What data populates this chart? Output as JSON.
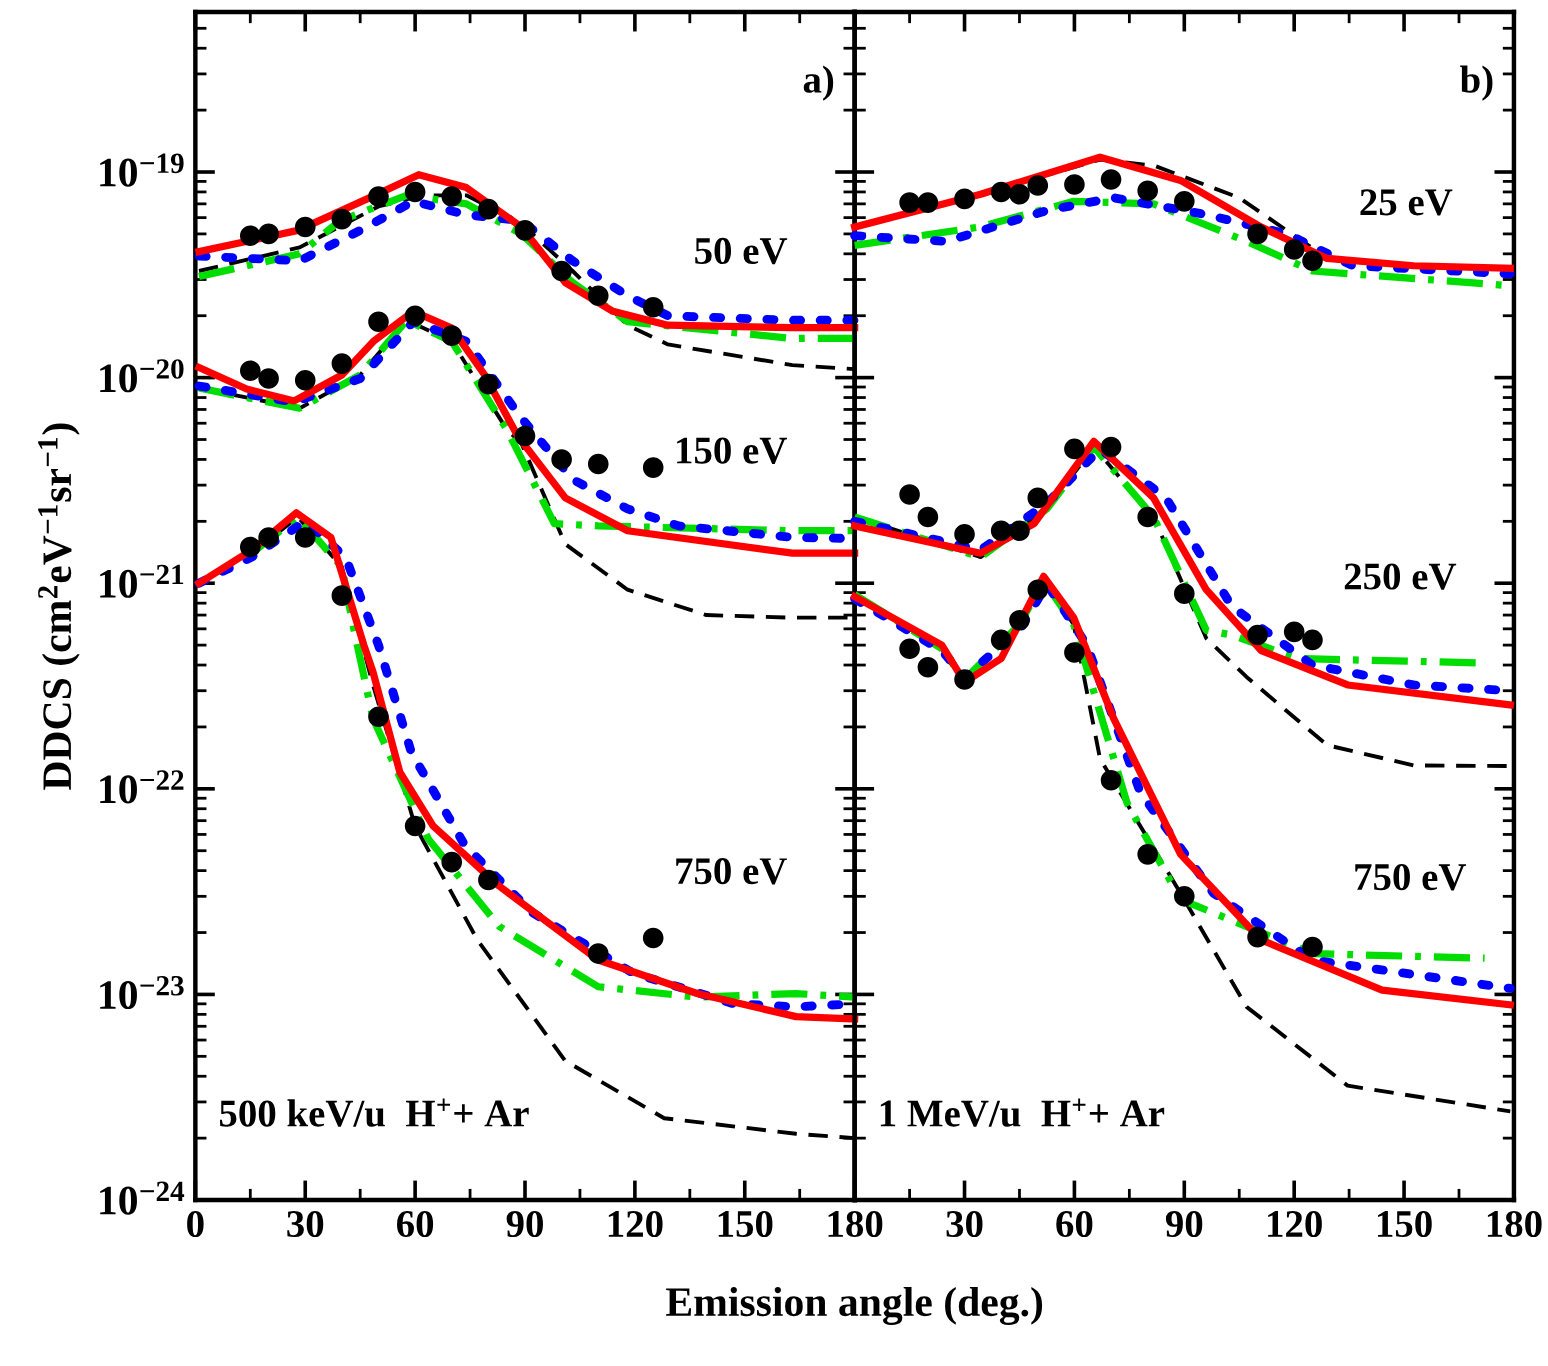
{
  "chart_data": [
    {
      "type": "line",
      "xlabel": "Emission angle (deg.)",
      "ylabel": "DDCS (cm$^{2}$eV$^{−1}$sr$^{−1}$)",
      "log": "y",
      "grid": false,
      "xlim": [
        0,
        180
      ],
      "xticks": [
        0,
        30,
        60,
        90,
        120,
        150,
        180
      ],
      "ylim": [
        1e-24,
        6e-19
      ],
      "yticks": [
        {
          "value": 1e-24,
          "label": "10$^{−24}$"
        },
        {
          "value": 1e-23,
          "label": "10$^{−23}$"
        },
        {
          "value": 1e-22,
          "label": "10$^{−22}$"
        },
        {
          "value": 1e-21,
          "label": "10$^{−21}$"
        },
        {
          "value": 1e-20,
          "label": "10$^{−20}$"
        },
        {
          "value": 1e-19,
          "label": "10$^{−19}$"
        }
      ],
      "annotations": [
        "a)",
        "500 keV/u  H$^{+}$+ Ar",
        "50 eV",
        "150 eV",
        "750 eV"
      ],
      "series": [
        {
          "color": "#000000",
          "line_style": "dashed",
          "x": [
            1,
            28.5,
            50,
            62,
            74,
            89,
            103,
            118,
            129,
            163,
            180
          ],
          "values": [
            3.3e-20,
            4.3e-20,
            6.8e-20,
            7.7e-20,
            7.7e-20,
            5.6e-20,
            3.3e-20,
            1.8e-20,
            1.45e-20,
            1.15e-20,
            1.1e-20
          ]
        },
        {
          "color": "#00dd00",
          "line_style": "dashdot",
          "x": [
            1,
            28.5,
            39.5,
            57.7,
            74,
            89,
            103,
            118,
            163,
            180
          ],
          "values": [
            3.1e-20,
            4e-20,
            5.8e-20,
            7.7e-20,
            7e-20,
            5e-20,
            2.9e-20,
            1.87e-20,
            1.55e-20,
            1.55e-20
          ]
        },
        {
          "color": "#0000ff",
          "line_style": "dotted",
          "x": [
            1,
            28.5,
            45,
            59.5,
            74,
            89,
            103,
            118,
            129,
            163,
            180
          ],
          "values": [
            3.9e-20,
            3.7e-20,
            5.2e-20,
            7.2e-20,
            6.2e-20,
            5.8e-20,
            3.7e-20,
            2.5e-20,
            2e-20,
            1.9e-20,
            1.9e-20
          ]
        },
        {
          "color": "#ff0000",
          "line_style": "solid",
          "x": [
            1,
            28,
            49,
            61,
            74,
            89,
            101,
            114,
            129,
            163,
            180
          ],
          "values": [
            4.1e-20,
            5.2e-20,
            7.7e-20,
            9.7e-20,
            8.4e-20,
            5.4e-20,
            2.9e-20,
            2.1e-20,
            1.8e-20,
            1.75e-20,
            1.75e-20
          ]
        },
        {
          "type": "scatter",
          "color": "#000000",
          "marker": "circle",
          "x": [
            15,
            20,
            30,
            40,
            50,
            60,
            70,
            80,
            90,
            100,
            110,
            125
          ],
          "values": [
            4.9e-20,
            5e-20,
            5.4e-20,
            5.9e-20,
            7.6e-20,
            8e-20,
            7.6e-20,
            6.6e-20,
            5.2e-20,
            3.3e-20,
            2.5e-20,
            2.2e-20
          ]
        },
        {
          "color": "#000000",
          "line_style": "dashed",
          "x": [
            1,
            28.5,
            45,
            57.7,
            70,
            85,
            89,
            101,
            118,
            139.5,
            163,
            180
          ],
          "values": [
            8.9e-21,
            7.1e-21,
            1.03e-20,
            1.9e-20,
            1.5e-20,
            5.6e-21,
            4.8e-21,
            1.55e-21,
            9.3e-22,
            7e-22,
            6.8e-22,
            6.8e-22
          ]
        },
        {
          "color": "#00dd00",
          "line_style": "dashdot",
          "x": [
            1,
            28.5,
            45,
            57.7,
            70,
            85,
            98,
            110,
            163,
            180
          ],
          "values": [
            8.9e-21,
            7.1e-21,
            1.03e-20,
            1.9e-20,
            1.5e-20,
            5.6e-21,
            1.95e-21,
            1.9e-21,
            1.8e-21,
            1.8e-21
          ]
        },
        {
          "color": "#0000ff",
          "line_style": "dotted",
          "x": [
            1,
            27,
            45,
            59.5,
            74,
            88.6,
            103,
            118,
            132,
            163,
            180
          ],
          "values": [
            9.1e-21,
            7.6e-21,
            9.9e-21,
            1.87e-20,
            1.5e-20,
            6.5e-21,
            3.2e-21,
            2.3e-21,
            1.9e-21,
            1.67e-21,
            1.65e-21
          ]
        },
        {
          "color": "#ff0000",
          "line_style": "solid",
          "x": [
            1,
            14,
            27,
            40,
            48.6,
            59.5,
            70,
            79,
            88,
            101,
            118,
            163,
            180
          ],
          "values": [
            1.12e-20,
            8.8e-21,
            7.7e-21,
            1.03e-20,
            1.5e-20,
            2.1e-20,
            1.74e-20,
            1.03e-20,
            5.2e-21,
            2.6e-21,
            1.8e-21,
            1.4e-21,
            1.4e-21
          ]
        },
        {
          "type": "scatter",
          "color": "#000000",
          "marker": "circle",
          "x": [
            15,
            20,
            30,
            40,
            50,
            60,
            70,
            80,
            90,
            100,
            110,
            125
          ],
          "values": [
            1.08e-20,
            9.9e-21,
            9.7e-21,
            1.17e-20,
            1.87e-20,
            2e-20,
            1.6e-20,
            9.3e-21,
            5.2e-21,
            4e-21,
            3.8e-21,
            3.65e-21
          ]
        },
        {
          "color": "#000000",
          "line_style": "dashed",
          "x": [
            15.4,
            28,
            40,
            48.5,
            60,
            77,
            101,
            128,
            164,
            180
          ],
          "values": [
            1.4e-21,
            2.1e-21,
            1.2e-21,
            3.2e-22,
            6.6e-23,
            1.84e-23,
            4.75e-24,
            2.5e-24,
            2.1e-24,
            2e-24
          ]
        },
        {
          "color": "#00dd00",
          "line_style": "dashdot",
          "x": [
            15.4,
            28,
            40,
            43,
            48.5,
            63.6,
            83,
            110,
            137,
            164,
            180
          ],
          "values": [
            1.4e-21,
            2.1e-21,
            1.2e-21,
            6.3e-22,
            2.2e-22,
            5.7e-23,
            2.14e-23,
            1.09e-23,
            9.7e-24,
            1.01e-23,
            9.7e-24
          ]
        },
        {
          "color": "#0000ff",
          "line_style": "dotted",
          "x": [
            1,
            15.4,
            30,
            41,
            50,
            59,
            73.6,
            92,
            119.5,
            147,
            164,
            180
          ],
          "values": [
            1e-21,
            1.34e-21,
            2e-21,
            1.34e-21,
            5e-22,
            1.5e-22,
            5.3e-23,
            2.5e-23,
            1.27e-23,
            9e-24,
            8.7e-24,
            9e-24
          ]
        },
        {
          "color": "#ff0000",
          "line_style": "solid",
          "x": [
            1,
            15.4,
            27.6,
            37,
            46,
            48.5,
            55.8,
            64.9,
            83,
            110,
            137,
            164,
            180
          ],
          "values": [
            1e-21,
            1.45e-21,
            2.2e-21,
            1.67e-21,
            5e-22,
            3.7e-22,
            1.21e-22,
            6.6e-23,
            3.36e-23,
            1.47e-23,
            1.01e-23,
            7.8e-24,
            7.6e-24
          ]
        },
        {
          "type": "scatter",
          "color": "#000000",
          "marker": "circle",
          "x": [
            15,
            20,
            30,
            40,
            50,
            60,
            70,
            80,
            110,
            125
          ],
          "values": [
            1.5e-21,
            1.67e-21,
            1.67e-21,
            8.7e-22,
            2.24e-22,
            6.6e-23,
            4.4e-23,
            3.6e-23,
            1.58e-23,
            1.88e-23
          ]
        }
      ]
    },
    {
      "type": "line",
      "log": "y",
      "grid": false,
      "tick_labels": "x",
      "xlim": [
        0,
        180
      ],
      "xticks": [
        30,
        60,
        90,
        120,
        150,
        180
      ],
      "ylim": [
        1e-24,
        6e-19
      ],
      "yticks": [
        {
          "value": 1e-24,
          "label": null
        },
        {
          "value": 1e-23,
          "label": null
        },
        {
          "value": 1e-22,
          "label": null
        },
        {
          "value": 1e-21,
          "label": null
        },
        {
          "value": 1e-20,
          "label": null
        },
        {
          "value": 1e-19,
          "label": null
        }
      ],
      "annotations": [
        "b)",
        "1 MeV/u  H$^{+}$+ Ar",
        "25 eV",
        "250 eV",
        "750 eV"
      ],
      "series": [
        {
          "color": "#000000",
          "line_style": "dashed",
          "x": [
            0,
            34.4,
            67,
            82,
            105,
            129,
            152.6,
            179
          ],
          "values": [
            5.4e-20,
            7.8e-20,
            1.15e-19,
            1.07e-19,
            7.5e-20,
            3.8e-20,
            3.5e-20,
            3.4e-20
          ]
        },
        {
          "color": "#00dd00",
          "line_style": "dashdot",
          "x": [
            0,
            34,
            59.8,
            81.6,
            107,
            125,
            179
          ],
          "values": [
            4.4e-20,
            5.4e-20,
            7.2e-20,
            7e-20,
            4.6e-20,
            3.3e-20,
            2.8e-20
          ]
        },
        {
          "color": "#0000ff",
          "line_style": "dotted",
          "x": [
            0,
            25,
            52.5,
            70.7,
            96,
            118,
            136,
            179
          ],
          "values": [
            4.9e-20,
            4.6e-20,
            6.5e-20,
            7.5e-20,
            6.2e-20,
            5e-20,
            3.5e-20,
            3.2e-20
          ]
        },
        {
          "color": "#ff0000",
          "line_style": "solid",
          "x": [
            0,
            34.4,
            67,
            89,
            111,
            129,
            152.6,
            179
          ],
          "values": [
            5.4e-20,
            7.8e-20,
            1.18e-19,
            9.1e-20,
            5.4e-20,
            3.8e-20,
            3.5e-20,
            3.4e-20
          ]
        },
        {
          "type": "scatter",
          "color": "#000000",
          "marker": "circle",
          "x": [
            15,
            20,
            30,
            40,
            45,
            50,
            60,
            70,
            80,
            90,
            110,
            120,
            125
          ],
          "values": [
            7.1e-20,
            7.1e-20,
            7.4e-20,
            8e-20,
            7.8e-20,
            8.6e-20,
            8.7e-20,
            9.2e-20,
            8.1e-20,
            7.2e-20,
            5e-20,
            4.2e-20,
            3.7e-20
          ]
        },
        {
          "color": "#000000",
          "line_style": "dashed",
          "x": [
            0,
            34.4,
            52.5,
            65.3,
            81.6,
            96,
            107,
            129,
            152.6,
            179
          ],
          "values": [
            2.1e-21,
            1.34e-21,
            2.3e-21,
            4.6e-21,
            2.1e-21,
            5.4e-22,
            3.5e-22,
            1.63e-22,
            1.3e-22,
            1.29e-22
          ]
        },
        {
          "color": "#00dd00",
          "line_style": "dashdot",
          "x": [
            0,
            34.4,
            52.5,
            65.3,
            81.6,
            96,
            103,
            121,
            170
          ],
          "values": [
            2.1e-21,
            1.34e-21,
            2.3e-21,
            4.6e-21,
            2.1e-21,
            5.9e-22,
            5.6e-22,
            4.3e-22,
            4.1e-22
          ]
        },
        {
          "color": "#0000ff",
          "line_style": "dotted",
          "x": [
            0,
            34.4,
            52.5,
            67,
            85,
            103,
            125,
            152.6,
            179
          ],
          "values": [
            2e-21,
            1.45e-21,
            2.45e-21,
            4.5e-21,
            2.6e-21,
            7.7e-22,
            4e-22,
            3.2e-22,
            3e-22
          ]
        },
        {
          "color": "#ff0000",
          "line_style": "solid",
          "x": [
            0,
            34.4,
            49,
            65.3,
            81.6,
            96,
            111,
            134.6,
            179
          ],
          "values": [
            1.9e-21,
            1.4e-21,
            1.95e-21,
            4.9e-21,
            2.6e-21,
            9.3e-22,
            4.7e-22,
            3.2e-22,
            2.56e-22
          ]
        },
        {
          "type": "scatter",
          "color": "#000000",
          "marker": "circle",
          "x": [
            15,
            20,
            30,
            40,
            45,
            50,
            60,
            70,
            80,
            90,
            110,
            120,
            125
          ],
          "values": [
            2.7e-21,
            2.1e-21,
            1.73e-21,
            1.8e-21,
            1.8e-21,
            2.6e-21,
            4.5e-21,
            4.6e-21,
            2.1e-21,
            8.9e-22,
            5.6e-22,
            5.8e-22,
            5.3e-22
          ]
        },
        {
          "color": "#000000",
          "line_style": "dashed",
          "x": [
            0,
            23.8,
            30,
            45,
            51.6,
            59.8,
            67,
            89,
            107,
            134.6,
            179
          ],
          "values": [
            8.8e-22,
            4.8e-22,
            3.4e-22,
            6.3e-22,
            1.03e-21,
            6.3e-22,
            1.4e-22,
            3.1e-23,
            8.7e-24,
            3.6e-24,
            2.7e-24
          ]
        },
        {
          "color": "#00dd00",
          "line_style": "dashdot",
          "x": [
            0,
            23.8,
            30,
            45,
            51.6,
            59.8,
            74.4,
            89,
            125,
            172
          ],
          "values": [
            8.8e-22,
            4.8e-22,
            3.4e-22,
            6.3e-22,
            1.03e-21,
            6.3e-22,
            8.5e-23,
            2.9e-23,
            1.58e-23,
            1.5e-23
          ]
        },
        {
          "color": "#0000ff",
          "line_style": "dotted",
          "x": [
            0,
            23.8,
            30,
            45,
            52.5,
            63.4,
            78,
            98,
            125,
            179
          ],
          "values": [
            8.4e-22,
            4.7e-22,
            3.5e-22,
            5.9e-22,
            9.9e-22,
            5e-22,
            9.6e-23,
            3.1e-23,
            1.47e-23,
            1.07e-23
          ]
        },
        {
          "color": "#ff0000",
          "line_style": "solid",
          "x": [
            0,
            23.8,
            30,
            40,
            51.6,
            59.8,
            70.7,
            89,
            111,
            144,
            179
          ],
          "values": [
            8.6e-22,
            5e-22,
            3.3e-22,
            4.3e-22,
            1.08e-21,
            6.8e-22,
            2.2e-22,
            4.8e-23,
            1.84e-23,
            1.05e-23,
            8.9e-24
          ]
        },
        {
          "type": "scatter",
          "color": "#000000",
          "marker": "circle",
          "x": [
            15,
            20,
            30,
            40,
            45,
            50,
            60,
            70,
            80,
            90,
            110,
            125
          ],
          "values": [
            4.8e-22,
            3.9e-22,
            3.4e-22,
            5.3e-22,
            6.6e-22,
            9.3e-22,
            4.6e-22,
            1.1e-22,
            4.8e-23,
            3e-23,
            1.9e-23,
            1.7e-23
          ]
        }
      ]
    }
  ]
}
